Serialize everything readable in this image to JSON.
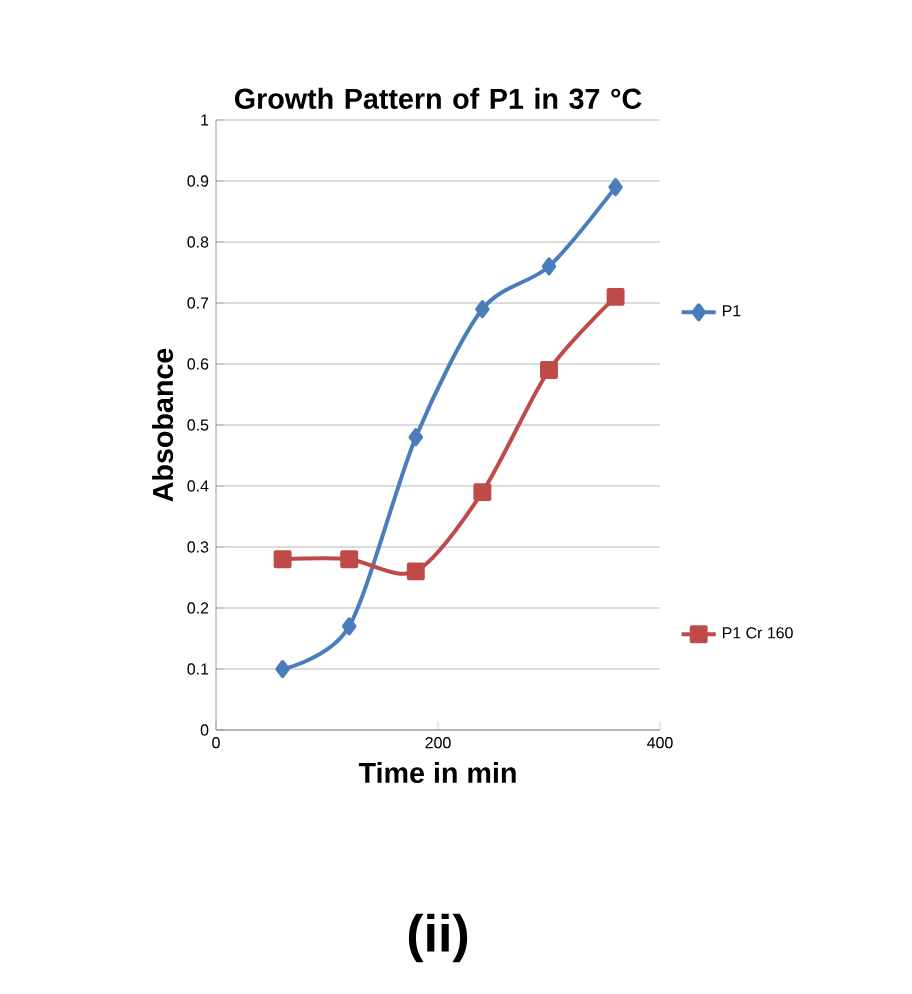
{
  "chart_data": {
    "type": "line",
    "title": "Growth Pattern of P1 in 37 °C",
    "xlabel": "Time in min",
    "ylabel": "Absobance",
    "annotations": [
      "(ii)"
    ],
    "x": [
      60,
      120,
      180,
      240,
      300,
      360
    ],
    "series": [
      {
        "name": "P1",
        "color": "#4a7ebb",
        "marker": "diamond",
        "values": [
          0.1,
          0.17,
          0.48,
          0.69,
          0.76,
          0.89
        ]
      },
      {
        "name": "P1 Cr 160",
        "color": "#be4b48",
        "marker": "square",
        "values": [
          0.28,
          0.28,
          0.26,
          0.39,
          0.59,
          0.71
        ]
      }
    ],
    "xlim": [
      0,
      400
    ],
    "xticks": [
      0,
      200,
      400
    ],
    "ylim": [
      0,
      1
    ],
    "yticks": [
      0,
      0.1,
      0.2,
      0.3,
      0.4,
      0.5,
      0.6,
      0.7,
      0.8,
      0.9,
      1
    ],
    "grid": "y",
    "legend": "right",
    "line_style": "solid"
  }
}
